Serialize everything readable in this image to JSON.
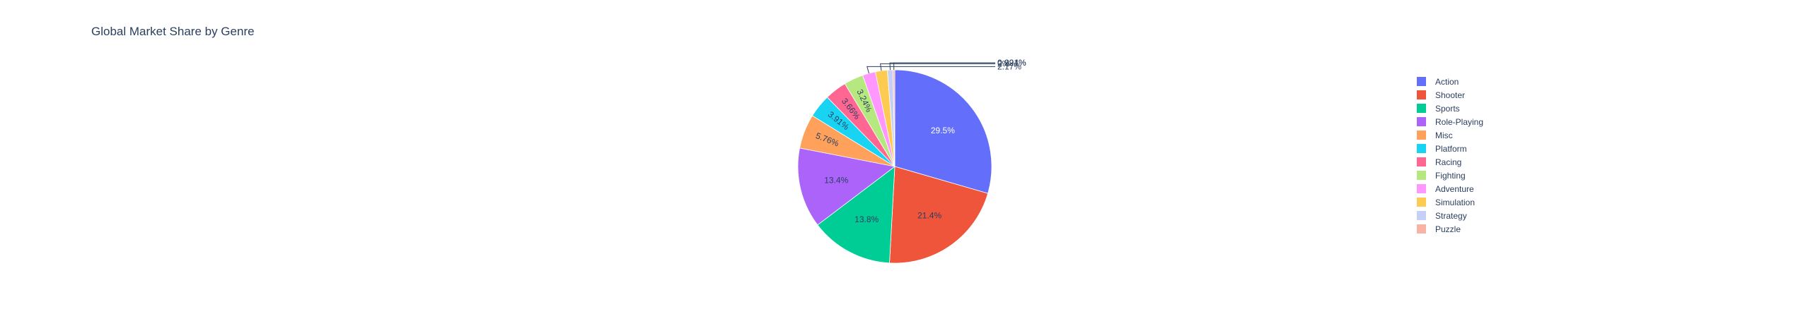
{
  "chart_data": {
    "type": "pie",
    "title": "Global Market Share by Genre",
    "slices": [
      {
        "label": "Action",
        "value": 29.5,
        "value_label": "29.5%",
        "color": "#636efa"
      },
      {
        "label": "Shooter",
        "value": 21.4,
        "value_label": "21.4%",
        "color": "#ef553b"
      },
      {
        "label": "Sports",
        "value": 13.8,
        "value_label": "13.8%",
        "color": "#00cc96"
      },
      {
        "label": "Role-Playing",
        "value": 13.4,
        "value_label": "13.4%",
        "color": "#ab63fa"
      },
      {
        "label": "Misc",
        "value": 5.76,
        "value_label": "5.76%",
        "color": "#ffa15a"
      },
      {
        "label": "Platform",
        "value": 3.91,
        "value_label": "3.91%",
        "color": "#19d3f3"
      },
      {
        "label": "Racing",
        "value": 3.66,
        "value_label": "3.66%",
        "color": "#ff6692"
      },
      {
        "label": "Fighting",
        "value": 3.24,
        "value_label": "3.24%",
        "color": "#b6e880"
      },
      {
        "label": "Adventure",
        "value": 2.17,
        "value_label": "2.17%",
        "color": "#ff97ff"
      },
      {
        "label": "Simulation",
        "value": 2.0,
        "value_label": "2%",
        "color": "#fecb52"
      },
      {
        "label": "Strategy",
        "value": 0.924,
        "value_label": "0.924%",
        "color": "#c6cff8"
      },
      {
        "label": "Puzzle",
        "value": 0.291,
        "value_label": "0.291%",
        "color": "#f9b3a4"
      }
    ],
    "legend_position": "right"
  }
}
